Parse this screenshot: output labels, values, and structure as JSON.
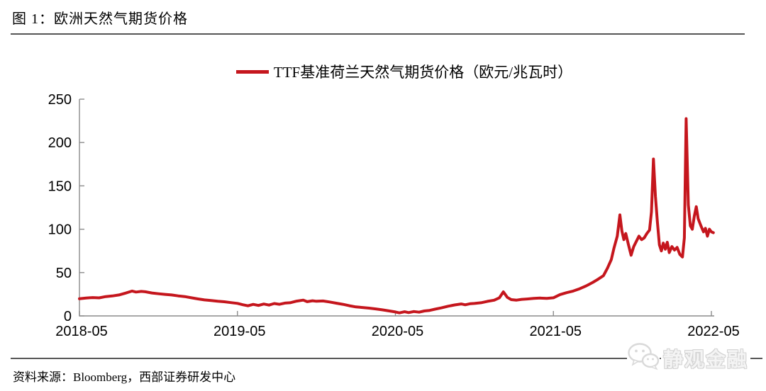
{
  "page": {
    "figure_title": "图 1：欧洲天然气期货价格",
    "source_note": "资料来源：Bloomberg，西部证券研发中心",
    "watermark_text": "静观金融"
  },
  "legend": {
    "label": "TTF基准荷兰天然气期货价格（欧元/兆瓦时）",
    "swatch_color": "#C5161D"
  },
  "colors": {
    "line_red": "#C5161D",
    "axis_gray": "#8C8C8C",
    "rule_gray": "#565656",
    "label_black": "#000000",
    "watermark_gray": "#D2D2D2"
  },
  "chart_data": {
    "type": "line",
    "title": "TTF基准荷兰天然气期货价格（欧元/兆瓦时）",
    "xlabel": "",
    "ylabel": "",
    "grid": false,
    "legend_position": "top-center",
    "x_unit": "months since 2018-05",
    "x_tick_months": [
      0,
      12,
      24,
      36,
      48
    ],
    "x_tick_labels": [
      "2018-05",
      "2019-05",
      "2020-05",
      "2021-05",
      "2022-05"
    ],
    "y_tick_values": [
      0,
      50,
      100,
      150,
      200,
      250
    ],
    "y_tick_labels": [
      "0",
      "50",
      "100",
      "150",
      "200",
      "250"
    ],
    "ylim": [
      0,
      250
    ],
    "notable_points": {
      "start_2018-05": 20,
      "peak_2018-09": 29,
      "low_2020-05": 3.5,
      "spike_2021-01": 28,
      "spike_2021-10": 117,
      "spike_2021-12": 181,
      "peak_2022-03": 228,
      "end_2022-05": 96
    },
    "series": [
      {
        "name": "TTF基准荷兰天然气期货价格（欧元/兆瓦时）",
        "color": "#C5161D",
        "points": [
          [
            0,
            19.8
          ],
          [
            0.5,
            20.6
          ],
          [
            1,
            21.2
          ],
          [
            1.5,
            20.8
          ],
          [
            2,
            22.3
          ],
          [
            2.5,
            23.0
          ],
          [
            3,
            24.2
          ],
          [
            3.5,
            26.3
          ],
          [
            4,
            28.7
          ],
          [
            4.3,
            27.5
          ],
          [
            4.7,
            28.3
          ],
          [
            5,
            27.9
          ],
          [
            5.5,
            26.5
          ],
          [
            6,
            25.6
          ],
          [
            6.5,
            24.8
          ],
          [
            7,
            24.2
          ],
          [
            7.5,
            23.1
          ],
          [
            8,
            22.3
          ],
          [
            8.5,
            20.9
          ],
          [
            9,
            19.6
          ],
          [
            9.5,
            18.5
          ],
          [
            10,
            17.7
          ],
          [
            10.5,
            16.9
          ],
          [
            11,
            16.3
          ],
          [
            11.5,
            15.4
          ],
          [
            12,
            14.5
          ],
          [
            12.4,
            12.9
          ],
          [
            12.8,
            11.7
          ],
          [
            13.2,
            13.3
          ],
          [
            13.6,
            12.1
          ],
          [
            14,
            13.7
          ],
          [
            14.4,
            12.5
          ],
          [
            14.8,
            14.3
          ],
          [
            15.2,
            13.4
          ],
          [
            15.6,
            14.8
          ],
          [
            16,
            15.2
          ],
          [
            16.5,
            17.1
          ],
          [
            17,
            18.2
          ],
          [
            17.3,
            16.4
          ],
          [
            17.7,
            17.5
          ],
          [
            18,
            16.9
          ],
          [
            18.5,
            17.2
          ],
          [
            19,
            16.1
          ],
          [
            19.5,
            14.7
          ],
          [
            20,
            13.4
          ],
          [
            20.5,
            11.8
          ],
          [
            21,
            10.4
          ],
          [
            21.5,
            9.7
          ],
          [
            22,
            9.0
          ],
          [
            22.5,
            8.1
          ],
          [
            23,
            7.0
          ],
          [
            23.5,
            5.8
          ],
          [
            24,
            4.6
          ],
          [
            24.3,
            3.5
          ],
          [
            24.7,
            4.8
          ],
          [
            25,
            3.8
          ],
          [
            25.4,
            5.1
          ],
          [
            25.8,
            4.3
          ],
          [
            26.2,
            5.7
          ],
          [
            26.6,
            6.4
          ],
          [
            27,
            7.8
          ],
          [
            27.5,
            9.3
          ],
          [
            28,
            11.2
          ],
          [
            28.5,
            12.7
          ],
          [
            29,
            13.8
          ],
          [
            29.3,
            12.8
          ],
          [
            29.7,
            14.1
          ],
          [
            30,
            14.4
          ],
          [
            30.5,
            15.2
          ],
          [
            31,
            16.8
          ],
          [
            31.5,
            18.1
          ],
          [
            31.9,
            20.9
          ],
          [
            32.2,
            27.8
          ],
          [
            32.5,
            21.4
          ],
          [
            32.8,
            18.8
          ],
          [
            33.2,
            18.2
          ],
          [
            33.6,
            19.1
          ],
          [
            34,
            19.5
          ],
          [
            34.5,
            20.2
          ],
          [
            35,
            20.6
          ],
          [
            35.5,
            20.2
          ],
          [
            36,
            20.9
          ],
          [
            36.5,
            24.6
          ],
          [
            37,
            26.8
          ],
          [
            37.5,
            28.7
          ],
          [
            38,
            31.4
          ],
          [
            38.5,
            34.7
          ],
          [
            39,
            38.7
          ],
          [
            39.4,
            42.4
          ],
          [
            39.8,
            46.4
          ],
          [
            40.1,
            55
          ],
          [
            40.4,
            65
          ],
          [
            40.6,
            78
          ],
          [
            40.85,
            92
          ],
          [
            41.05,
            116.5
          ],
          [
            41.2,
            98
          ],
          [
            41.35,
            88
          ],
          [
            41.5,
            95
          ],
          [
            41.7,
            82
          ],
          [
            41.9,
            70
          ],
          [
            42.1,
            80
          ],
          [
            42.3,
            86
          ],
          [
            42.5,
            92
          ],
          [
            42.7,
            88
          ],
          [
            42.9,
            90
          ],
          [
            43.1,
            95
          ],
          [
            43.3,
            99
          ],
          [
            43.45,
            120
          ],
          [
            43.6,
            181
          ],
          [
            43.75,
            138
          ],
          [
            43.9,
            108
          ],
          [
            44.05,
            82
          ],
          [
            44.2,
            75
          ],
          [
            44.35,
            84
          ],
          [
            44.5,
            77
          ],
          [
            44.65,
            85
          ],
          [
            44.8,
            73
          ],
          [
            45,
            80
          ],
          [
            45.2,
            76
          ],
          [
            45.4,
            79
          ],
          [
            45.6,
            71
          ],
          [
            45.8,
            68
          ],
          [
            45.95,
            90
          ],
          [
            46.08,
            227.5
          ],
          [
            46.25,
            128
          ],
          [
            46.4,
            104
          ],
          [
            46.55,
            100
          ],
          [
            46.7,
            115
          ],
          [
            46.85,
            126
          ],
          [
            47,
            112
          ],
          [
            47.2,
            104
          ],
          [
            47.4,
            97
          ],
          [
            47.55,
            101
          ],
          [
            47.7,
            92
          ],
          [
            47.85,
            100
          ],
          [
            48,
            97
          ],
          [
            48.15,
            96
          ]
        ]
      }
    ]
  }
}
